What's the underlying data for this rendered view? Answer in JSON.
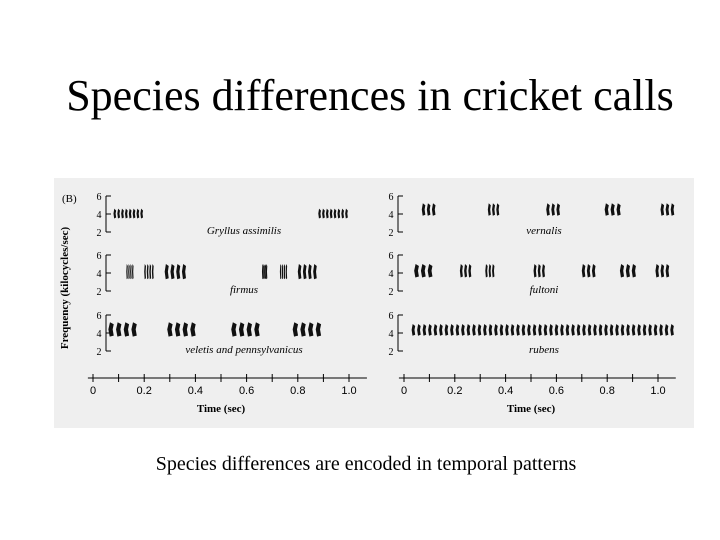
{
  "slide": {
    "title": "Species differences in cricket calls",
    "caption": "Species differences are encoded in temporal patterns"
  },
  "chart_data": {
    "type": "spectrogram",
    "figure_label": "(B)",
    "ylabel": "Frequency (kilocycles/sec)",
    "xlabel": "Time (sec)",
    "yticks": [
      "2",
      "4",
      "6"
    ],
    "xticks": [
      "0",
      "0.2",
      "0.4",
      "0.6",
      "0.8",
      "1.0"
    ],
    "xlim": [
      -0.02,
      1.07
    ],
    "ylim": [
      2,
      6
    ],
    "columns": [
      {
        "panels": [
          {
            "label": "Gryllus assimilis",
            "pulses_per_burst": 8,
            "freq_range": [
              3.5,
              4.6
            ],
            "bursts": [
              [
                0.08,
                0.2
              ],
              [
                0.88,
                1.0
              ]
            ]
          },
          {
            "label": "firmus",
            "pulses_per_burst": 4,
            "freq_range": [
              3.3,
              5.0
            ],
            "bursts": [
              [
                0.13,
                0.16
              ],
              [
                0.2,
                0.24
              ],
              [
                0.28,
                0.37
              ],
              [
                0.66,
                0.68
              ],
              [
                0.73,
                0.76
              ],
              [
                0.8,
                0.88
              ]
            ]
          },
          {
            "label": "veletis and pennsylvanicus",
            "pulses_per_burst": 4,
            "freq_range": [
              3.6,
              5.2
            ],
            "bursts": [
              [
                0.06,
                0.18
              ],
              [
                0.29,
                0.41
              ],
              [
                0.54,
                0.66
              ],
              [
                0.78,
                0.9
              ]
            ]
          }
        ]
      },
      {
        "panels": [
          {
            "label": "vernalis",
            "pulses_per_burst": 3,
            "freq_range": [
              3.8,
              5.2
            ],
            "bursts": [
              [
                0.07,
                0.13
              ],
              [
                0.33,
                0.38
              ],
              [
                0.56,
                0.62
              ],
              [
                0.79,
                0.86
              ],
              [
                1.01,
                1.07
              ]
            ]
          },
          {
            "label": "fultoni",
            "pulses_per_burst": 3,
            "freq_range": [
              3.5,
              5.0
            ],
            "bursts": [
              [
                0.04,
                0.12
              ],
              [
                0.22,
                0.27
              ],
              [
                0.32,
                0.36
              ],
              [
                0.51,
                0.56
              ],
              [
                0.7,
                0.76
              ],
              [
                0.85,
                0.92
              ],
              [
                0.99,
                1.05
              ]
            ]
          },
          {
            "label": "rubens",
            "pulses_per_burst": 48,
            "freq_range": [
              3.7,
              5.0
            ],
            "bursts": [
              [
                0.03,
                1.07
              ]
            ]
          }
        ]
      }
    ]
  }
}
